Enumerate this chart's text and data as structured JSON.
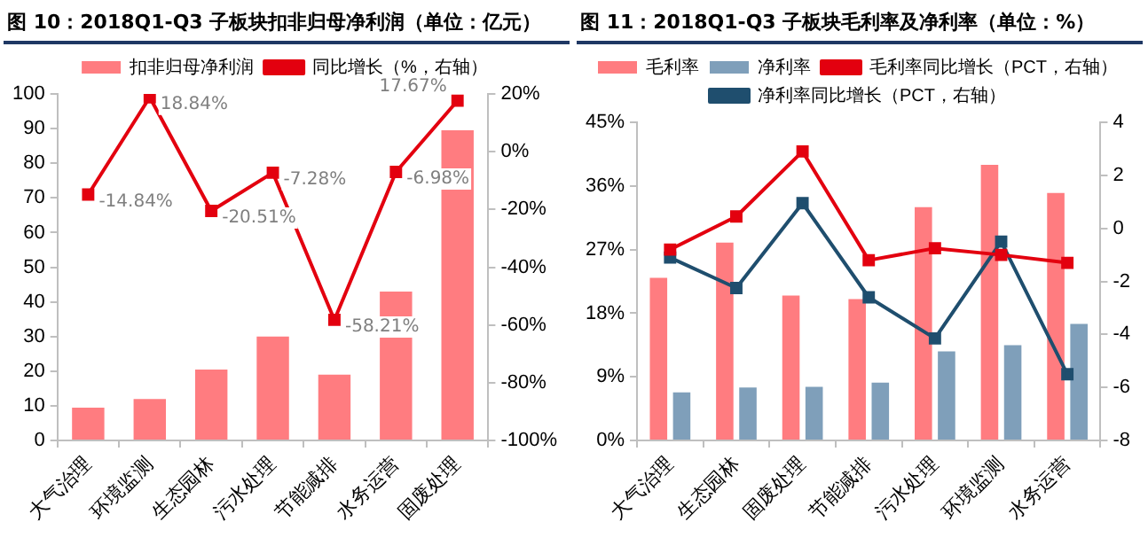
{
  "chart_data": [
    {
      "type": "bar",
      "title": "图 10：2018Q1-Q3 子板块扣非归母净利润（单位：亿元）",
      "categories": [
        "大气治理",
        "环境监测",
        "生态园林",
        "污水处理",
        "节能减排",
        "水务运营",
        "固废处理"
      ],
      "legend": "top",
      "marker": "square",
      "line_style": "solid",
      "grid": false,
      "series": [
        {
          "name": "扣非归母净利润",
          "color": "#ff7c80",
          "values": [
            9.5,
            12,
            20.5,
            30,
            19,
            43,
            89.5
          ]
        },
        {
          "name": "同比增长（%，右轴）",
          "type": "line",
          "axis": "y2",
          "color": "#e3000f",
          "values": [
            -14.84,
            18.84,
            -20.51,
            -7.28,
            -58.21,
            -6.98,
            17.67
          ],
          "value_labels": [
            "-14.84%",
            "18.84%",
            "-20.51%",
            "-7.28%",
            "-58.21%",
            "-6.98%",
            "17.67%"
          ]
        }
      ],
      "ylim": [
        0,
        100
      ],
      "yticks": [
        0,
        10,
        20,
        30,
        40,
        50,
        60,
        70,
        80,
        90,
        100
      ],
      "y2lim": [
        -100,
        20
      ],
      "y2ticks": [
        {
          "value": -100,
          "label": "-100%"
        },
        {
          "value": -80,
          "label": "-80%"
        },
        {
          "value": -60,
          "label": "-60%"
        },
        {
          "value": -40,
          "label": "-40%"
        },
        {
          "value": -20,
          "label": "-20%"
        },
        {
          "value": 0,
          "label": "0%"
        },
        {
          "value": 20,
          "label": "20%"
        }
      ]
    },
    {
      "type": "bar",
      "title": "图 11：2018Q1-Q3 子板块毛利率及净利率（单位：%）",
      "categories": [
        "大气治理",
        "生态园林",
        "固废处理",
        "节能减排",
        "污水处理",
        "环境监测",
        "水务运营"
      ],
      "legend": "top",
      "marker": "square",
      "line_style": "solid",
      "grid": false,
      "series": [
        {
          "name": "毛利率",
          "color": "#ff7c80",
          "values": [
            23,
            28,
            20.5,
            20,
            33,
            39,
            35
          ]
        },
        {
          "name": "净利率",
          "color": "#7f9fba",
          "values": [
            6.8,
            7.5,
            7.6,
            8.2,
            12.6,
            13.5,
            16.5
          ]
        },
        {
          "name": "毛利率同比增长（PCT，右轴）",
          "type": "line",
          "axis": "y2",
          "color": "#e3000f",
          "values": [
            -0.8,
            0.45,
            2.9,
            -1.2,
            -0.75,
            -1.0,
            -1.3
          ]
        },
        {
          "name": "净利率同比增长（PCT，右轴）",
          "type": "line",
          "axis": "y2",
          "color": "#1f4e6e",
          "values": [
            -1.1,
            -2.25,
            0.95,
            -2.6,
            -4.15,
            -0.5,
            -5.5
          ]
        }
      ],
      "ylim": [
        0,
        45
      ],
      "yticks": [
        {
          "value": 0,
          "label": "0%"
        },
        {
          "value": 9,
          "label": "9%"
        },
        {
          "value": 18,
          "label": "18%"
        },
        {
          "value": 27,
          "label": "27%"
        },
        {
          "value": 36,
          "label": "36%"
        },
        {
          "value": 45,
          "label": "45%"
        }
      ],
      "y2lim": [
        -8,
        4
      ],
      "y2ticks": [
        -8,
        -6,
        -4,
        -2,
        0,
        2,
        4
      ]
    }
  ]
}
